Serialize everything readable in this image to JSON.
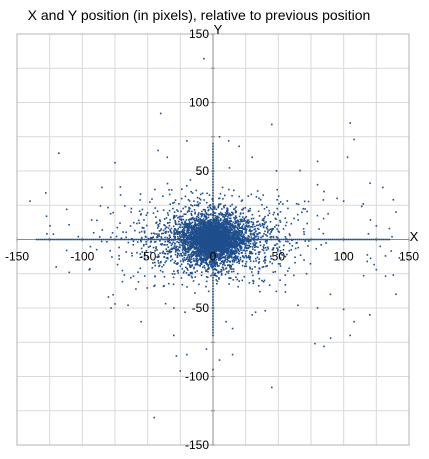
{
  "chart_data": {
    "type": "scatter",
    "title": "X and Y position (in pixels), relative to previous position",
    "xlabel": "X",
    "ylabel": "Y",
    "xlim": [
      -150,
      150
    ],
    "ylim": [
      -150,
      150
    ],
    "x_ticks": [
      -150,
      -100,
      -50,
      0,
      50,
      100,
      150
    ],
    "y_ticks": [
      -150,
      -100,
      -50,
      0,
      50,
      100,
      150
    ],
    "x_tick_labels": [
      "-150",
      "-100",
      "-50",
      "0",
      "50",
      "100",
      "150"
    ],
    "y_tick_labels": [
      "-150",
      "-100",
      "-50",
      "0",
      "50",
      "100",
      "150"
    ],
    "grid": true,
    "marker_color": "#1f4e8c",
    "outlier_points": [
      {
        "x": -7,
        "y": 132
      },
      {
        "x": 45,
        "y": 84
      },
      {
        "x": 105,
        "y": 85
      },
      {
        "x": 108,
        "y": 73
      },
      {
        "x": -40,
        "y": 92
      },
      {
        "x": -118,
        "y": 63
      },
      {
        "x": -75,
        "y": 56
      },
      {
        "x": 103,
        "y": 60
      },
      {
        "x": -42,
        "y": 65
      },
      {
        "x": -20,
        "y": 72
      },
      {
        "x": 5,
        "y": 75
      },
      {
        "x": 12,
        "y": 72
      },
      {
        "x": 20,
        "y": 68
      },
      {
        "x": -35,
        "y": 60
      },
      {
        "x": 30,
        "y": 60
      },
      {
        "x": 80,
        "y": 57
      },
      {
        "x": -140,
        "y": 28
      },
      {
        "x": -128,
        "y": 34
      },
      {
        "x": 138,
        "y": 29
      },
      {
        "x": 130,
        "y": 38
      },
      {
        "x": 95,
        "y": 30
      },
      {
        "x": 100,
        "y": 28
      },
      {
        "x": -112,
        "y": 22
      },
      {
        "x": 80,
        "y": 40
      },
      {
        "x": 85,
        "y": 35
      },
      {
        "x": -85,
        "y": 38
      },
      {
        "x": 140,
        "y": 20
      },
      {
        "x": 115,
        "y": 26
      },
      {
        "x": 125,
        "y": 10
      },
      {
        "x": 135,
        "y": 8
      },
      {
        "x": 128,
        "y": -5
      },
      {
        "x": 132,
        "y": -12
      },
      {
        "x": 118,
        "y": -16
      },
      {
        "x": 125,
        "y": -22
      },
      {
        "x": 138,
        "y": -26
      },
      {
        "x": 137,
        "y": 2
      },
      {
        "x": 140,
        "y": -40
      },
      {
        "x": -112,
        "y": -8
      },
      {
        "x": -110,
        "y": -24
      },
      {
        "x": -120,
        "y": -20
      },
      {
        "x": -80,
        "y": -42
      },
      {
        "x": -78,
        "y": -50
      },
      {
        "x": -75,
        "y": -47
      },
      {
        "x": -65,
        "y": -48
      },
      {
        "x": -30,
        "y": -50
      },
      {
        "x": 10,
        "y": -60
      },
      {
        "x": 15,
        "y": -65
      },
      {
        "x": 30,
        "y": -55
      },
      {
        "x": 40,
        "y": -52
      },
      {
        "x": 65,
        "y": -48
      },
      {
        "x": 80,
        "y": -50
      },
      {
        "x": 100,
        "y": -51
      },
      {
        "x": 120,
        "y": -55
      },
      {
        "x": 108,
        "y": -60
      },
      {
        "x": 90,
        "y": -72
      },
      {
        "x": 78,
        "y": -76
      },
      {
        "x": 85,
        "y": -78
      },
      {
        "x": 105,
        "y": -70
      },
      {
        "x": -30,
        "y": -70
      },
      {
        "x": -28,
        "y": -85
      },
      {
        "x": -20,
        "y": -84
      },
      {
        "x": -5,
        "y": -80
      },
      {
        "x": 15,
        "y": -84
      },
      {
        "x": 0,
        "y": -95
      },
      {
        "x": 5,
        "y": -88
      },
      {
        "x": 45,
        "y": -108
      },
      {
        "x": -45,
        "y": -130
      },
      {
        "x": -25,
        "y": -96
      },
      {
        "x": -55,
        "y": -60
      }
    ]
  }
}
